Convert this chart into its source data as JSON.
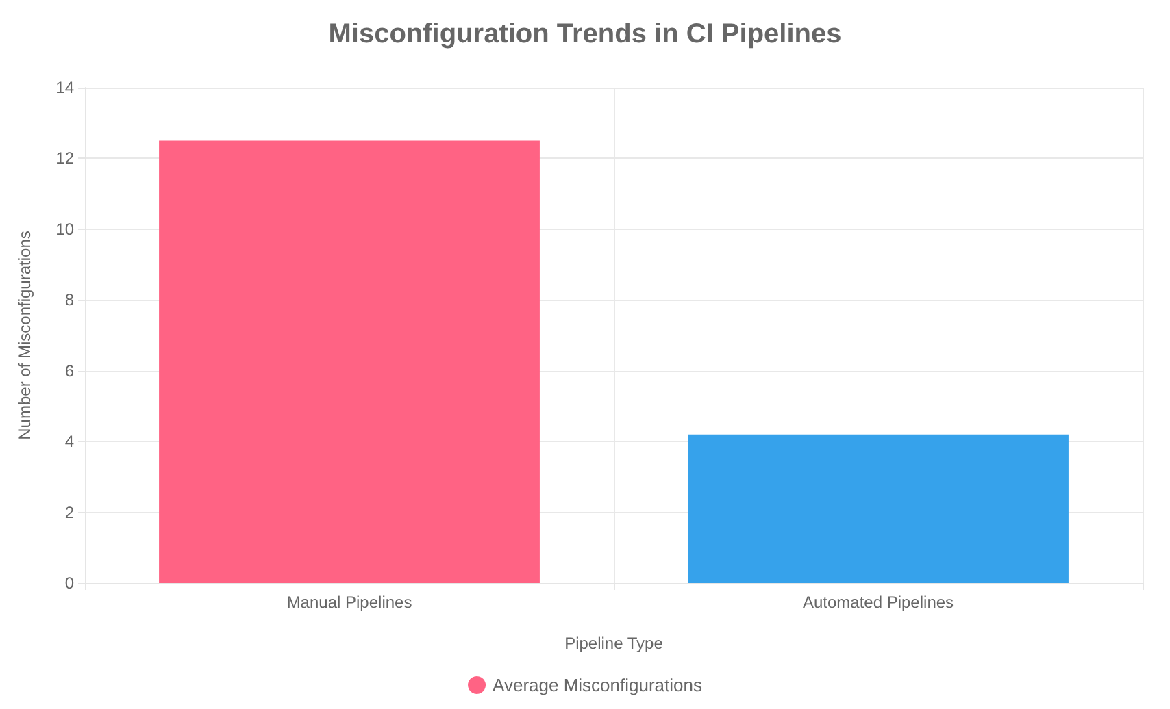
{
  "chart_data": {
    "type": "bar",
    "title": "Misconfiguration Trends in CI Pipelines",
    "xlabel": "Pipeline Type",
    "ylabel": "Number of Misconfigurations",
    "categories": [
      "Manual Pipelines",
      "Automated Pipelines"
    ],
    "series": [
      {
        "name": "Average Misconfigurations",
        "color": "#ff6384",
        "colors": [
          "#ff6384",
          "#36a2eb"
        ],
        "values": [
          12.5,
          4.2
        ]
      }
    ],
    "ylim": [
      0,
      14
    ],
    "yticks": [
      0,
      2,
      4,
      6,
      8,
      10,
      12,
      14
    ],
    "grid": true,
    "legend": "bottom"
  }
}
